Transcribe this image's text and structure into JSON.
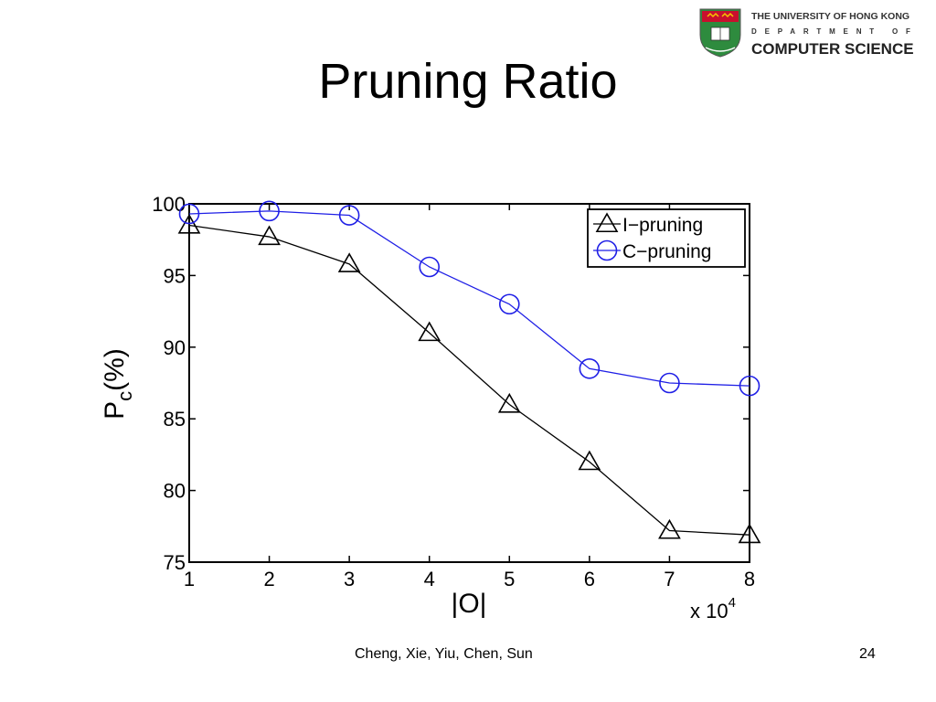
{
  "slide": {
    "title": "Pruning Ratio",
    "footer": "Cheng, Xie, Yiu, Chen, Sun",
    "page_number": "24"
  },
  "logo": {
    "line1": "THE UNIVERSITY OF HONG KONG",
    "line2": "DEPARTMENT OF",
    "line3": "COMPUTER SCIENCE"
  },
  "colors": {
    "i_pruning": "#000000",
    "c_pruning": "#1f1fe6"
  },
  "chart_data": {
    "type": "line",
    "xlabel": "|O|",
    "ylabel": "P",
    "ylabel_subscript": "c",
    "ylabel_suffix": "(%)",
    "x_multiplier": "x 10",
    "x_multiplier_exponent": "4",
    "x": [
      1,
      2,
      3,
      4,
      5,
      6,
      7,
      8
    ],
    "xlim": [
      1,
      8
    ],
    "ylim": [
      75,
      100
    ],
    "xticks": [
      "1",
      "2",
      "3",
      "4",
      "5",
      "6",
      "7",
      "8"
    ],
    "yticks": [
      "75",
      "80",
      "85",
      "90",
      "95",
      "100"
    ],
    "grid": false,
    "legend_position": "top-right",
    "series": [
      {
        "name": "I−pruning",
        "marker": "triangle",
        "values": [
          98.5,
          97.7,
          95.8,
          91.0,
          86.0,
          82.0,
          77.2,
          76.9
        ]
      },
      {
        "name": "C−pruning",
        "marker": "circle",
        "values": [
          99.3,
          99.5,
          99.2,
          95.6,
          93.0,
          88.5,
          87.5,
          87.3
        ]
      }
    ]
  }
}
